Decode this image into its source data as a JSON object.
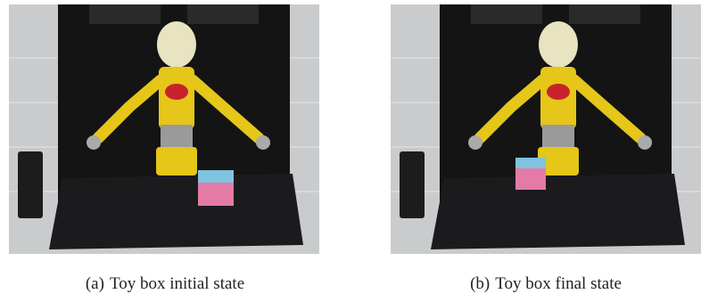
{
  "figures": [
    {
      "label": "(a)",
      "caption": "Toy box initial state"
    },
    {
      "label": "(b)",
      "caption": "Toy box final state"
    }
  ]
}
